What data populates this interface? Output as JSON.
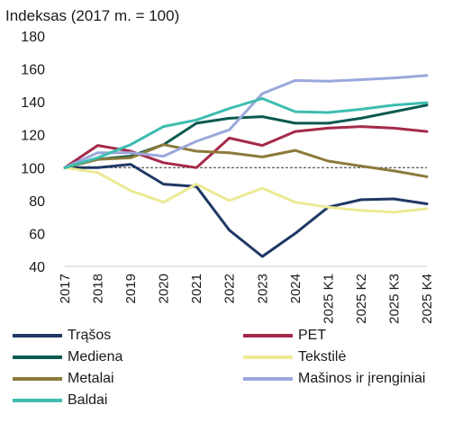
{
  "chart_data": {
    "type": "line",
    "title": "",
    "ylabel": "Indeksas (2017 m. = 100)",
    "xlabel": "",
    "ylim": [
      40,
      180
    ],
    "yticks": [
      40,
      60,
      80,
      100,
      120,
      140,
      160,
      180
    ],
    "categories": [
      "2017",
      "2018",
      "2019",
      "2020",
      "2021",
      "2022",
      "2023",
      "2024",
      "2025 K1",
      "2025 K2",
      "2025 K3",
      "2025 K4"
    ],
    "reference_line": 100,
    "grid": false,
    "legend_position": "bottom",
    "series": [
      {
        "name": "Trąšos",
        "color": "#1f3864",
        "values": [
          100,
          100,
          102,
          90,
          88.5,
          62,
          46,
          60,
          76,
          80.5,
          81,
          78
        ]
      },
      {
        "name": "PET",
        "color": "#a52a4a",
        "values": [
          100,
          113.5,
          110,
          103,
          100,
          118,
          113.5,
          122,
          124,
          125,
          124,
          122
        ]
      },
      {
        "name": "Mediena",
        "color": "#0b5a50",
        "values": [
          100,
          105,
          107,
          114,
          127,
          130,
          131,
          127,
          127,
          130,
          134,
          138
        ]
      },
      {
        "name": "Tekstilė",
        "color": "#ece994",
        "values": [
          100,
          97,
          86,
          79,
          90,
          80,
          87.5,
          79,
          76,
          74,
          73,
          75
        ]
      },
      {
        "name": "Metalai",
        "color": "#8b7a3a",
        "values": [
          100,
          105,
          106,
          114,
          110,
          109,
          106.5,
          110.5,
          104,
          101,
          98,
          94.5
        ]
      },
      {
        "name": "Mašinos ir įrenginiai",
        "color": "#9ba8dc",
        "values": [
          100,
          109,
          109,
          107,
          116,
          123,
          145,
          153,
          152.5,
          153.5,
          154.5,
          156
        ]
      },
      {
        "name": "Baldai",
        "color": "#3dbdb0",
        "values": [
          100,
          106,
          114,
          125,
          129,
          136,
          142,
          134,
          133.5,
          135.5,
          138,
          139.5
        ]
      }
    ]
  }
}
